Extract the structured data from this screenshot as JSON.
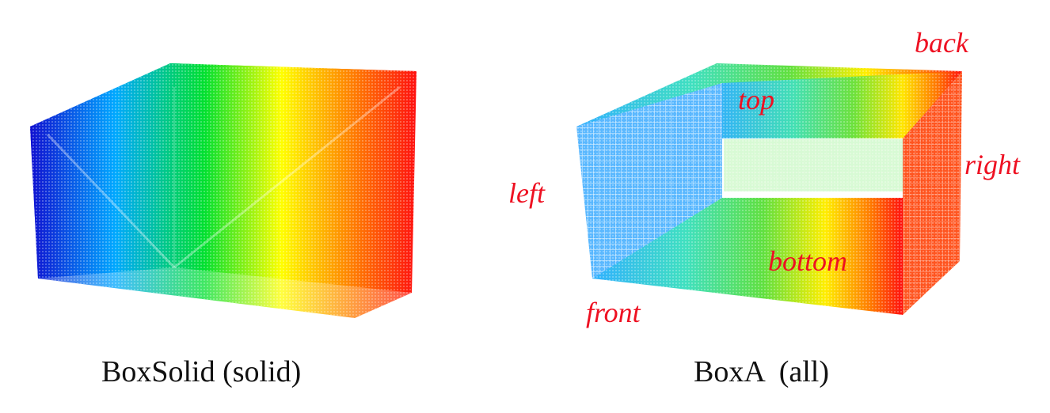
{
  "captions": {
    "left": "BoxSolid (solid)",
    "right": "BoxA  (all)"
  },
  "face_labels": {
    "back": "back",
    "top": "top",
    "right": "right",
    "left": "left",
    "bottom": "bottom",
    "front": "front"
  },
  "colors": {
    "label": "#ee1122",
    "caption": "#111111",
    "gradient": [
      "#1010d0",
      "#00c0ff",
      "#00e020",
      "#ffff00",
      "#ff8800",
      "#ff1010"
    ]
  }
}
